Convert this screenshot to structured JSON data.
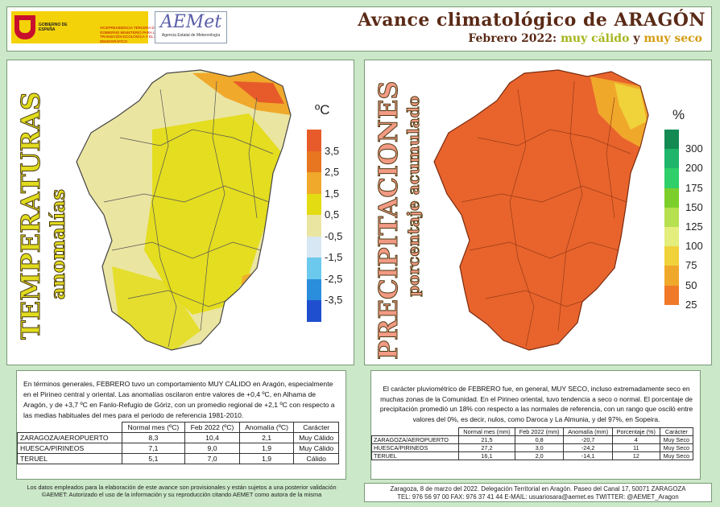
{
  "header": {
    "gov_label": "GOBIERNO DE ESPAÑA",
    "ministry_label": "VICEPRESIDENCIA TERCERA DEL GOBIERNO MINISTERIO PARA LA TRANSICIÓN ECOLÓGICA Y EL RETO DEMOGRÁFICO",
    "aemet_logo": "AEMet",
    "aemet_sub": "Agencia Estatal de Meteorología",
    "title": "Avance climatológico de ARAGÓN",
    "subtitle_prefix": "Febrero 2022:",
    "subtitle_a": "muy cálido",
    "subtitle_join": "y",
    "subtitle_b": "muy seco"
  },
  "temp_panel": {
    "title": "TEMPERATURAS",
    "subtitle": "anomalías",
    "unit": "ºC",
    "legend": [
      {
        "label": "3,5",
        "color": "#e8751f"
      },
      {
        "label": "2,5",
        "color": "#f0a92b"
      },
      {
        "label": "1,5",
        "color": "#e3dc12"
      },
      {
        "label": "0,5",
        "color": "#ebe5a2"
      },
      {
        "label": "-0,5",
        "color": "#d7e7f3"
      },
      {
        "label": "-1,5",
        "color": "#6ac9ec"
      },
      {
        "label": "-2,5",
        "color": "#2a8edc"
      },
      {
        "label": "-3,5",
        "color": "#1f4fcf"
      }
    ],
    "top_color": "#e75b2a",
    "text": "En términos generales, FEBRERO tuvo un comportamiento MUY CÁLIDO en Aragón, especialmente en el Pirineo central y oriental. Las anomalías oscilaron entre valores de +0,4 ºC, en Alhama de Aragón, y de +3,7 ºC en Fanlo-Refugio de Góriz, con un promedio regional de +2,1 ºC con respecto a las medias habituales del mes para el periodo de referencia 1981-2010.",
    "table": {
      "headers": [
        "Normal mes (ºC)",
        "Feb 2022 (ºC)",
        "Anomalía (ºC)",
        "Carácter"
      ],
      "rows": [
        {
          "station": "ZARAGOZA/AEROPUERTO",
          "normal": "8,3",
          "value": "10,4",
          "anomaly": "2,1",
          "character": "Muy Cálido"
        },
        {
          "station": "HUESCA/PIRINEOS",
          "normal": "7,1",
          "value": "9,0",
          "anomaly": "1,9",
          "character": "Muy Cálido"
        },
        {
          "station": "TERUEL",
          "normal": "5,1",
          "value": "7,0",
          "anomaly": "1,9",
          "character": "Cálido"
        }
      ]
    }
  },
  "precip_panel": {
    "title": "PRECIPITACIONES",
    "subtitle": "porcentaje acumulado",
    "unit": "%",
    "legend": [
      {
        "label": "300",
        "color": "#138a52"
      },
      {
        "label": "200",
        "color": "#1fb56a"
      },
      {
        "label": "175",
        "color": "#2fcf6a"
      },
      {
        "label": "150",
        "color": "#7ccf2a"
      },
      {
        "label": "125",
        "color": "#b6e04f"
      },
      {
        "label": "100",
        "color": "#e3ee7c"
      },
      {
        "label": "75",
        "color": "#f0d23a"
      },
      {
        "label": "50",
        "color": "#f0a82b"
      },
      {
        "label": "25",
        "color": "#f07a28"
      }
    ],
    "text": "El carácter pluviométrico de FEBRERO fue, en general, MUY SECO, incluso extremadamente seco en muchas zonas de la Comunidad. En el Pirineo oriental, tuvo tendencia a seco o normal. El porcentaje de precipitación promedió un 18% con respecto a las normales de referencia, con un rango que osciló entre valores del 0%, es decir, nulos, como Daroca y La Almunia, y del 97%, en Sopeira.",
    "table": {
      "headers": [
        "Normal mes (mm)",
        "Feb 2022 (mm)",
        "Anomalía (mm)",
        "Porcentaje (%)",
        "Carácter"
      ],
      "rows": [
        {
          "station": "ZARAGOZA/AEROPUERTO",
          "normal": "21,5",
          "value": "0,8",
          "anomaly": "-20,7",
          "percent": "4",
          "character": "Muy Seco"
        },
        {
          "station": "HUESCA/PIRINEOS",
          "normal": "27,2",
          "value": "3,0",
          "anomaly": "-24,2",
          "percent": "11",
          "character": "Muy Seco"
        },
        {
          "station": "TERUEL",
          "normal": "16,1",
          "value": "2,0",
          "anomaly": "-14,1",
          "percent": "12",
          "character": "Muy Seco"
        }
      ]
    }
  },
  "footer": {
    "left_line1": "Los datos empleados para la elaboración de este avance son provisionales y están sujetos a una posterior validación",
    "left_line2": "©AEMET: Autorizado el uso de la información y su reproducción citando AEMET como autora de la misma",
    "right_line1": "Zaragoza, 8 de marzo del 2022. Delegación Territorial en Aragón. Paseo del Canal 17, 50071 ZARAGOZA",
    "right_line2": "TEL: 976 56 97 00  FAX: 976 37 41 44  E-MAIL: usuariosara@aemet.es  TWITTER: @AEMET_Aragon"
  }
}
